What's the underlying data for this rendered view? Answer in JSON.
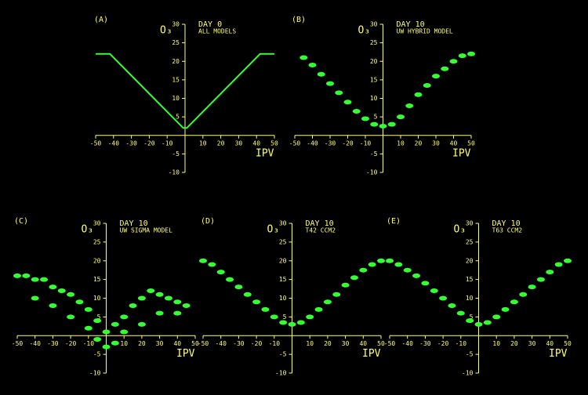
{
  "chart_data": [
    {
      "type": "line",
      "panel": "(A)",
      "title": "DAY 0",
      "subtitle": "ALL MODELS",
      "y_label": "O₃",
      "x_label": "IPV",
      "x": [
        -50,
        -42,
        -1,
        1,
        42,
        50
      ],
      "values": [
        22,
        22,
        2,
        2,
        22,
        22
      ],
      "color": "#33ff33",
      "xlim": [
        -50,
        50
      ],
      "ylim": [
        -10,
        30
      ],
      "xticks": [
        -50,
        -40,
        -30,
        -20,
        -10,
        10,
        20,
        30,
        40,
        50
      ],
      "yticks": [
        -10,
        -5,
        5,
        10,
        15,
        20,
        25,
        30
      ]
    },
    {
      "type": "scatter",
      "panel": "(B)",
      "title": "DAY 10",
      "subtitle": "UW HYBRID MODEL",
      "y_label": "O₃",
      "x_label": "IPV",
      "x": [
        -45,
        -40,
        -35,
        -30,
        -25,
        -20,
        -15,
        -10,
        -5,
        0,
        5,
        10,
        15,
        20,
        25,
        30,
        35,
        40,
        45,
        50
      ],
      "values": [
        21,
        19,
        16.5,
        14,
        11.5,
        9,
        6.5,
        4.5,
        3,
        2.5,
        3,
        5,
        8,
        11,
        13.5,
        16,
        18,
        20,
        21.5,
        22
      ],
      "color": "#33ff33",
      "xlim": [
        -50,
        50
      ],
      "ylim": [
        -10,
        30
      ],
      "xticks": [
        -50,
        -40,
        -30,
        -20,
        -10,
        10,
        20,
        30,
        40,
        50
      ],
      "yticks": [
        -10,
        -5,
        5,
        10,
        15,
        20,
        25,
        30
      ]
    },
    {
      "type": "scatter",
      "panel": "(C)",
      "title": "DAY 10",
      "subtitle": "UW SIGMA MODEL",
      "y_label": "O₃",
      "x_label": "IPV",
      "x": [
        -50,
        -45,
        -40,
        -35,
        -30,
        -25,
        -20,
        -15,
        -10,
        -5,
        0,
        5,
        10,
        15,
        20,
        25,
        30,
        35,
        40,
        45,
        -40,
        -30,
        -20,
        -10,
        0,
        10,
        20,
        30,
        40,
        -5,
        5
      ],
      "values": [
        16,
        16,
        15,
        15,
        13,
        12,
        11,
        9,
        7,
        4,
        1,
        3,
        5,
        8,
        10,
        12,
        11,
        10,
        9,
        8,
        10,
        8,
        5,
        2,
        -3,
        1,
        3,
        6,
        6,
        -1,
        -2
      ],
      "color": "#33ff33",
      "xlim": [
        -50,
        50
      ],
      "ylim": [
        -10,
        30
      ],
      "xticks": [
        -50,
        -40,
        -30,
        -20,
        -10,
        10,
        20,
        30,
        40,
        50
      ],
      "yticks": [
        -10,
        -5,
        5,
        10,
        15,
        20,
        25,
        30
      ]
    },
    {
      "type": "scatter",
      "panel": "(D)",
      "title": "DAY 10",
      "subtitle": "T42 CCM2",
      "y_label": "O₃",
      "x_label": "IPV",
      "x": [
        -50,
        -45,
        -40,
        -35,
        -30,
        -25,
        -20,
        -15,
        -10,
        -5,
        0,
        5,
        10,
        15,
        20,
        25,
        30,
        35,
        40,
        45,
        50
      ],
      "values": [
        20,
        19,
        17,
        15,
        13,
        11,
        9,
        7,
        5,
        3.5,
        3,
        3.5,
        5,
        7,
        9,
        11,
        13.5,
        15.5,
        17.5,
        19,
        20
      ],
      "color": "#33ff33",
      "xlim": [
        -50,
        50
      ],
      "ylim": [
        -10,
        30
      ],
      "xticks": [
        -50,
        -40,
        -30,
        -20,
        -10,
        10,
        20,
        30,
        40,
        50
      ],
      "yticks": [
        -10,
        -5,
        5,
        10,
        15,
        20,
        25,
        30
      ]
    },
    {
      "type": "scatter",
      "panel": "(E)",
      "title": "DAY 10",
      "subtitle": "T63 CCM2",
      "y_label": "O₃",
      "x_label": "IPV",
      "x": [
        -50,
        -45,
        -40,
        -35,
        -30,
        -25,
        -20,
        -15,
        -10,
        -5,
        0,
        5,
        10,
        15,
        20,
        25,
        30,
        35,
        40,
        45,
        50
      ],
      "values": [
        20,
        19,
        17.5,
        16,
        14,
        12,
        10,
        8,
        6,
        4,
        3,
        3.5,
        5,
        7,
        9,
        11,
        13,
        15,
        17,
        19,
        20
      ],
      "color": "#33ff33",
      "xlim": [
        -50,
        50
      ],
      "ylim": [
        -10,
        30
      ],
      "xticks": [
        -50,
        -40,
        -30,
        -20,
        -10,
        10,
        20,
        30,
        40,
        50
      ],
      "yticks": [
        -10,
        -5,
        5,
        10,
        15,
        20,
        25,
        30
      ]
    }
  ]
}
